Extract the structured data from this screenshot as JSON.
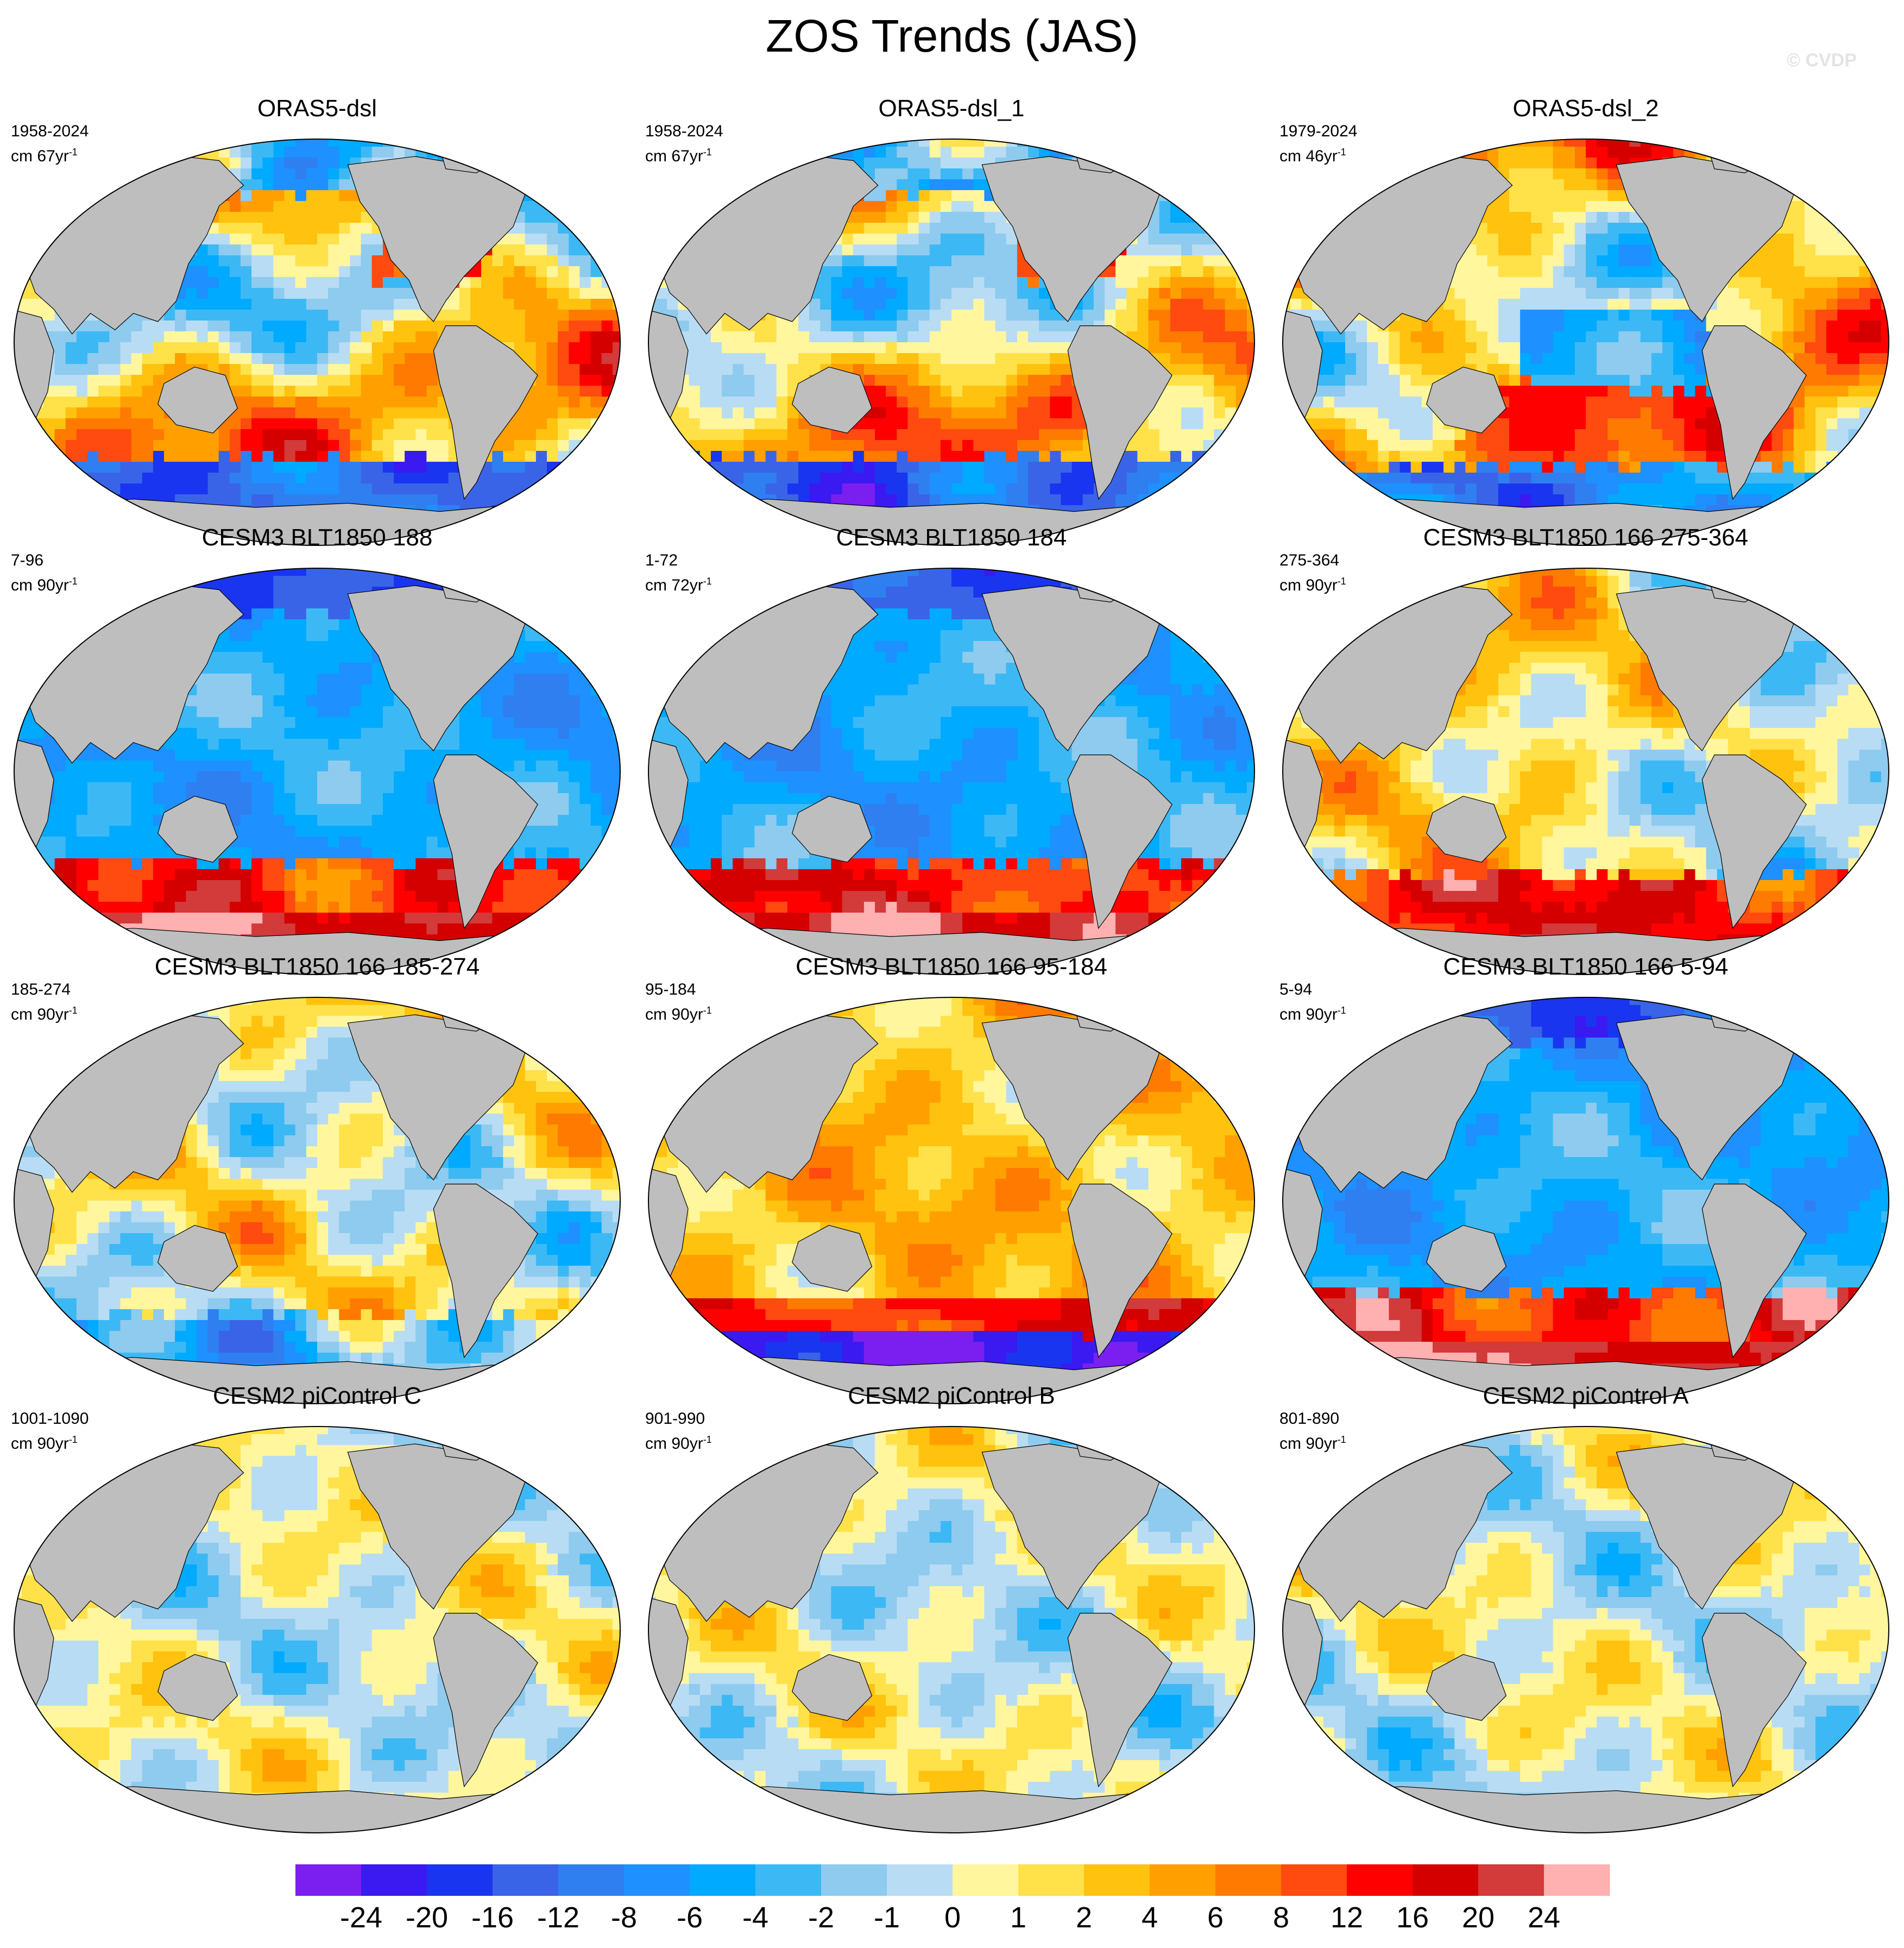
{
  "figure": {
    "title": "ZOS Trends (JAS)",
    "watermark": "© CVDP"
  },
  "colors": {
    "ocean_palette": [
      "#7a1ff0",
      "#3a1af0",
      "#1a35f0",
      "#3a64e8",
      "#2f7ff0",
      "#1e90ff",
      "#00aaff",
      "#3cb9f5",
      "#8ecbee",
      "#b8dcf3",
      "#fff69e",
      "#ffe14a",
      "#ffc20e",
      "#ffa000",
      "#ff7a00",
      "#ff4a10",
      "#ff0000",
      "#d40000",
      "#d33a3a",
      "#ffb0b0"
    ],
    "land": "#bebebe",
    "coast": "#000000"
  },
  "panels": [
    {
      "title": "ORAS5-dsl",
      "period": "1958-2024",
      "units": "cm 67yr",
      "units_exp": "-1",
      "pattern": "obs1",
      "seed": 11
    },
    {
      "title": "ORAS5-dsl_1",
      "period": "1958-2024",
      "units": "cm 67yr",
      "units_exp": "-1",
      "pattern": "obs1",
      "seed": 12
    },
    {
      "title": "ORAS5-dsl_2",
      "period": "1979-2024",
      "units": "cm 46yr",
      "units_exp": "-1",
      "pattern": "obs2",
      "seed": 13
    },
    {
      "title": "CESM3 BLT1850 188",
      "period": "7-96",
      "units": "cm 90yr",
      "units_exp": "-1",
      "pattern": "blue_redsouth",
      "seed": 21
    },
    {
      "title": "CESM3 BLT1850 184",
      "period": "1-72",
      "units": "cm 72yr",
      "units_exp": "-1",
      "pattern": "blue_redsouth",
      "seed": 22
    },
    {
      "title": "CESM3 BLT1850 166 275-364",
      "period": "275-364",
      "units": "cm 90yr",
      "units_exp": "-1",
      "pattern": "mixed_redsouth",
      "seed": 23
    },
    {
      "title": "CESM3 BLT1850 166 185-274",
      "period": "185-274",
      "units": "cm 90yr",
      "units_exp": "-1",
      "pattern": "mixed",
      "seed": 31
    },
    {
      "title": "CESM3 BLT1850 166 95-184",
      "period": "95-184",
      "units": "cm 90yr",
      "units_exp": "-1",
      "pattern": "warm_bluesouth",
      "seed": 32
    },
    {
      "title": "CESM3 BLT1850 166 5-94",
      "period": "5-94",
      "units": "cm 90yr",
      "units_exp": "-1",
      "pattern": "blue_redsouth",
      "seed": 33
    },
    {
      "title": "CESM2 piControl C",
      "period": "1001-1090",
      "units": "cm 90yr",
      "units_exp": "-1",
      "pattern": "pale",
      "seed": 41
    },
    {
      "title": "CESM2 piControl B",
      "period": "901-990",
      "units": "cm 90yr",
      "units_exp": "-1",
      "pattern": "pale",
      "seed": 42
    },
    {
      "title": "CESM2 piControl A",
      "period": "801-890",
      "units": "cm 90yr",
      "units_exp": "-1",
      "pattern": "pale",
      "seed": 43
    }
  ],
  "colorbar": {
    "labels": [
      "-24",
      "-20",
      "-16",
      "-12",
      "-8",
      "-6",
      "-4",
      "-2",
      "-1",
      "0",
      "1",
      "2",
      "4",
      "6",
      "8",
      "12",
      "16",
      "20",
      "24"
    ]
  }
}
